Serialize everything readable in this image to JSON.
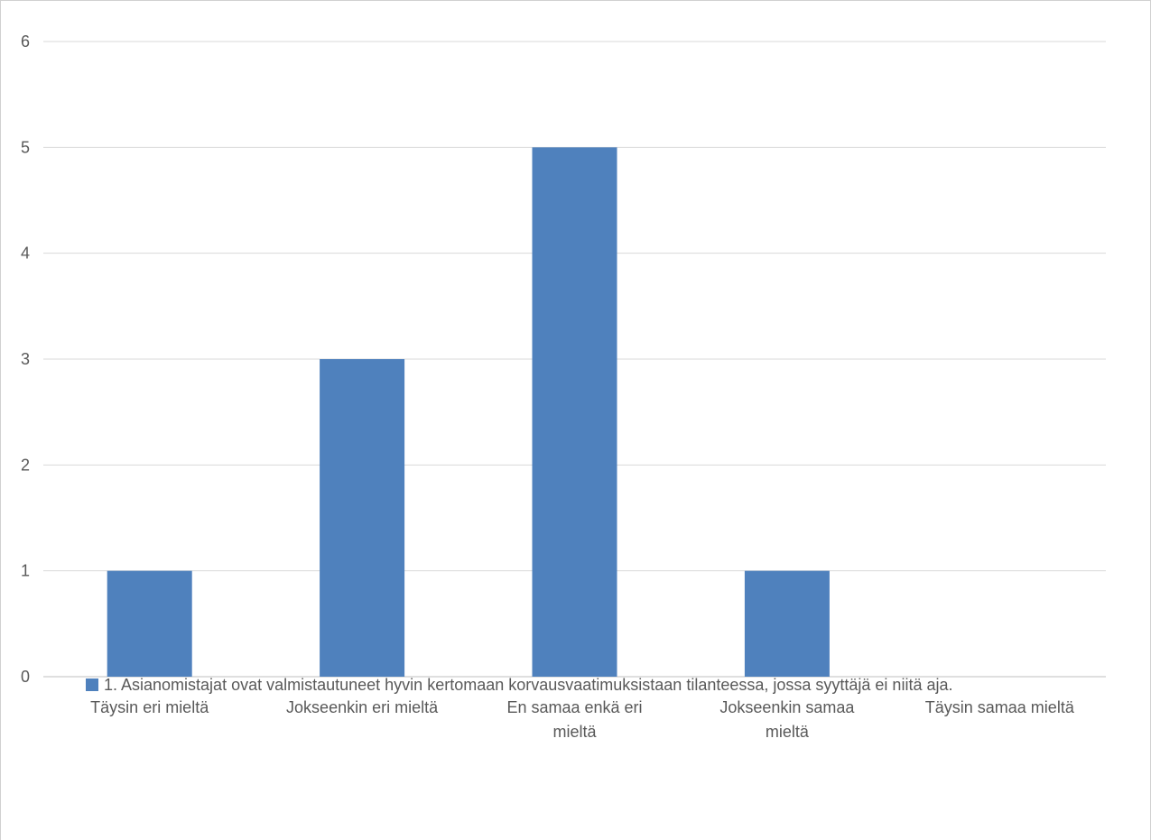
{
  "chart_data": {
    "type": "bar",
    "categories": [
      "Täysin eri mieltä",
      "Jokseenkin eri mieltä",
      "En samaa enkä eri mieltä",
      "Jokseenkin samaa mieltä",
      "Täysin samaa mieltä"
    ],
    "category_lines": [
      [
        "Täysin eri mieltä"
      ],
      [
        "Jokseenkin eri mieltä"
      ],
      [
        "En samaa enkä eri",
        "mieltä"
      ],
      [
        "Jokseenkin samaa",
        "mieltä"
      ],
      [
        "Täysin samaa mieltä"
      ]
    ],
    "series": [
      {
        "name": "1.    Asianomistajat ovat valmistautuneet hyvin kertomaan korvausvaatimuksistaan tilanteessa, jossa syyttäjä ei niitä aja.",
        "values": [
          1,
          3,
          5,
          1,
          0
        ],
        "color": "#4f81bd"
      }
    ],
    "yticks": [
      "0",
      "1",
      "2",
      "3",
      "4",
      "5",
      "6"
    ],
    "ylim": [
      0,
      6
    ],
    "grid": true,
    "legend_position": "bottom",
    "title": "",
    "xlabel": "",
    "ylabel": ""
  }
}
